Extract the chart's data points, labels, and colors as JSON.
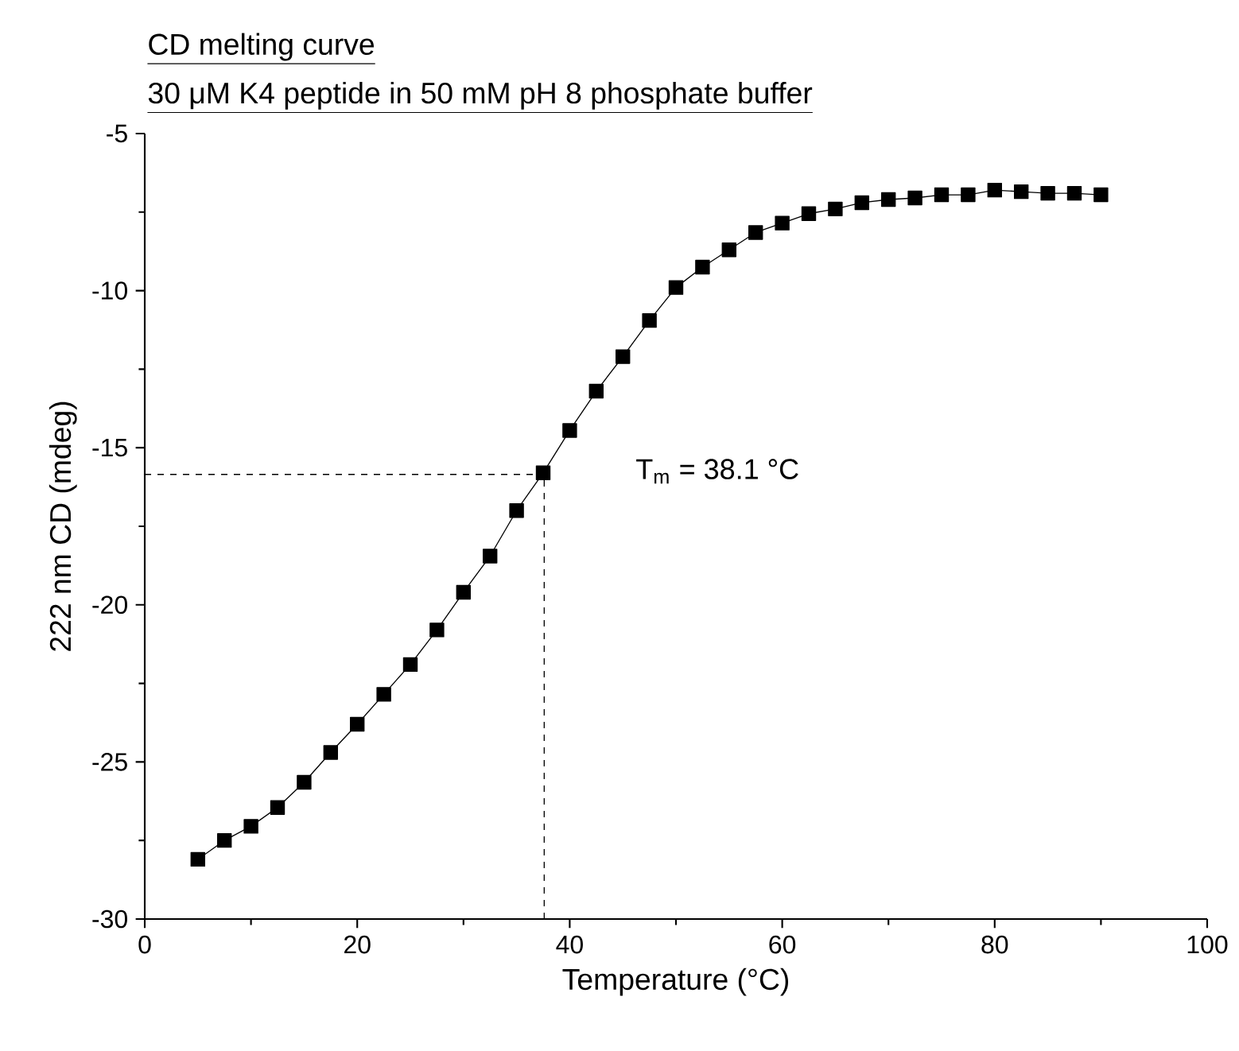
{
  "chart_data": {
    "type": "line",
    "title": "CD melting curve",
    "subtitle": "30 μM K4 peptide in 50 mM pH 8 phosphate buffer",
    "xlabel": "Temperature (°C)",
    "ylabel": "222 nm CD (mdeg)",
    "x": [
      5,
      7.5,
      10,
      12.5,
      15,
      17.5,
      20,
      22.5,
      25,
      27.5,
      30,
      32.5,
      35,
      37.5,
      40,
      42.5,
      45,
      47.5,
      50,
      52.5,
      55,
      57.5,
      60,
      62.5,
      65,
      67.5,
      70,
      72.5,
      75,
      77.5,
      80,
      82.5,
      85,
      87.5,
      90
    ],
    "series": [
      {
        "color": "#000000",
        "values": [
          -28.1,
          -27.5,
          -27.05,
          -26.45,
          -25.65,
          -24.7,
          -23.8,
          -22.85,
          -21.9,
          -20.8,
          -19.6,
          -18.45,
          -17.0,
          -15.8,
          -14.45,
          -13.2,
          -12.1,
          -10.95,
          -9.9,
          -9.25,
          -8.7,
          -8.15,
          -7.85,
          -7.55,
          -7.4,
          -7.2,
          -7.1,
          -7.05,
          -6.95,
          -6.95,
          -6.8,
          -6.85,
          -6.9,
          -6.9,
          -6.95
        ]
      }
    ],
    "marker": "square",
    "line_style": "solid",
    "grid": false,
    "xlim": [
      0,
      100
    ],
    "ylim": [
      -30,
      -5
    ],
    "xticks": [
      0,
      20,
      40,
      60,
      80,
      100
    ],
    "yticks": [
      -30,
      -25,
      -20,
      -15,
      -10,
      -5
    ],
    "ref_lines": [
      {
        "axis": "x",
        "value": 37.6,
        "line_style": "dashed"
      },
      {
        "axis": "y",
        "value": -15.85,
        "line_style": "dashed"
      }
    ],
    "annotations": [
      "T$_{m}$ = 38.1 °C"
    ]
  }
}
